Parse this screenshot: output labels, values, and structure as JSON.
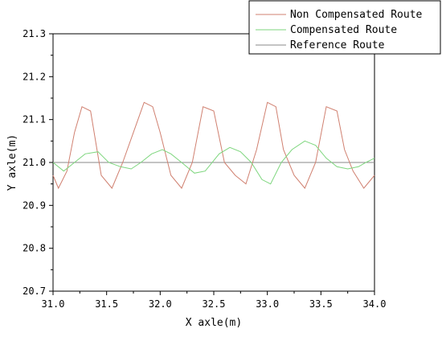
{
  "chart_data": {
    "type": "line",
    "xlabel": "X axle(m)",
    "ylabel": "Y axle(m)",
    "xlim": [
      31.0,
      34.0
    ],
    "ylim": [
      20.7,
      21.3
    ],
    "x_ticks": [
      "31.0",
      "31.5",
      "32.0",
      "32.5",
      "33.0",
      "33.5",
      "34.0"
    ],
    "y_ticks": [
      "20.7",
      "20.8",
      "20.9",
      "21.0",
      "21.1",
      "21.2",
      "21.3"
    ],
    "legend_position": "top-right",
    "grid": false,
    "series": [
      {
        "name": "Non Compensated Route",
        "color": "#d08070",
        "x": [
          31.0,
          31.05,
          31.13,
          31.2,
          31.27,
          31.35,
          31.45,
          31.55,
          31.65,
          31.75,
          31.85,
          31.93,
          32.0,
          32.1,
          32.2,
          32.3,
          32.4,
          32.5,
          32.6,
          32.7,
          32.8,
          32.9,
          33.0,
          33.08,
          33.15,
          33.25,
          33.35,
          33.45,
          33.55,
          33.65,
          33.72,
          33.8,
          33.9,
          34.0
        ],
        "values": [
          20.97,
          20.94,
          20.98,
          21.07,
          21.13,
          21.12,
          20.97,
          20.94,
          21.0,
          21.07,
          21.14,
          21.13,
          21.07,
          20.97,
          20.94,
          21.0,
          21.13,
          21.12,
          21.0,
          20.97,
          20.95,
          21.03,
          21.14,
          21.13,
          21.03,
          20.97,
          20.94,
          21.0,
          21.13,
          21.12,
          21.03,
          20.98,
          20.94,
          20.97
        ]
      },
      {
        "name": "Compensated Route",
        "color": "#7ed67e",
        "x": [
          31.0,
          31.1,
          31.2,
          31.3,
          31.42,
          31.52,
          31.63,
          31.73,
          31.82,
          31.92,
          32.02,
          32.1,
          32.2,
          32.32,
          32.42,
          32.55,
          32.65,
          32.75,
          32.85,
          32.95,
          33.03,
          33.13,
          33.23,
          33.35,
          33.45,
          33.55,
          33.65,
          33.75,
          33.85,
          33.92,
          34.0
        ],
        "values": [
          21.0,
          20.98,
          21.0,
          21.02,
          21.025,
          21.0,
          20.99,
          20.985,
          21.0,
          21.02,
          21.03,
          21.02,
          21.0,
          20.975,
          20.98,
          21.02,
          21.035,
          21.025,
          21.0,
          20.96,
          20.95,
          21.0,
          21.03,
          21.05,
          21.04,
          21.01,
          20.99,
          20.985,
          20.99,
          21.0,
          21.01
        ]
      },
      {
        "name": "Reference Route",
        "color": "#8a8a8a",
        "x": [
          31.0,
          34.0
        ],
        "values": [
          21.0,
          21.0
        ]
      }
    ]
  }
}
